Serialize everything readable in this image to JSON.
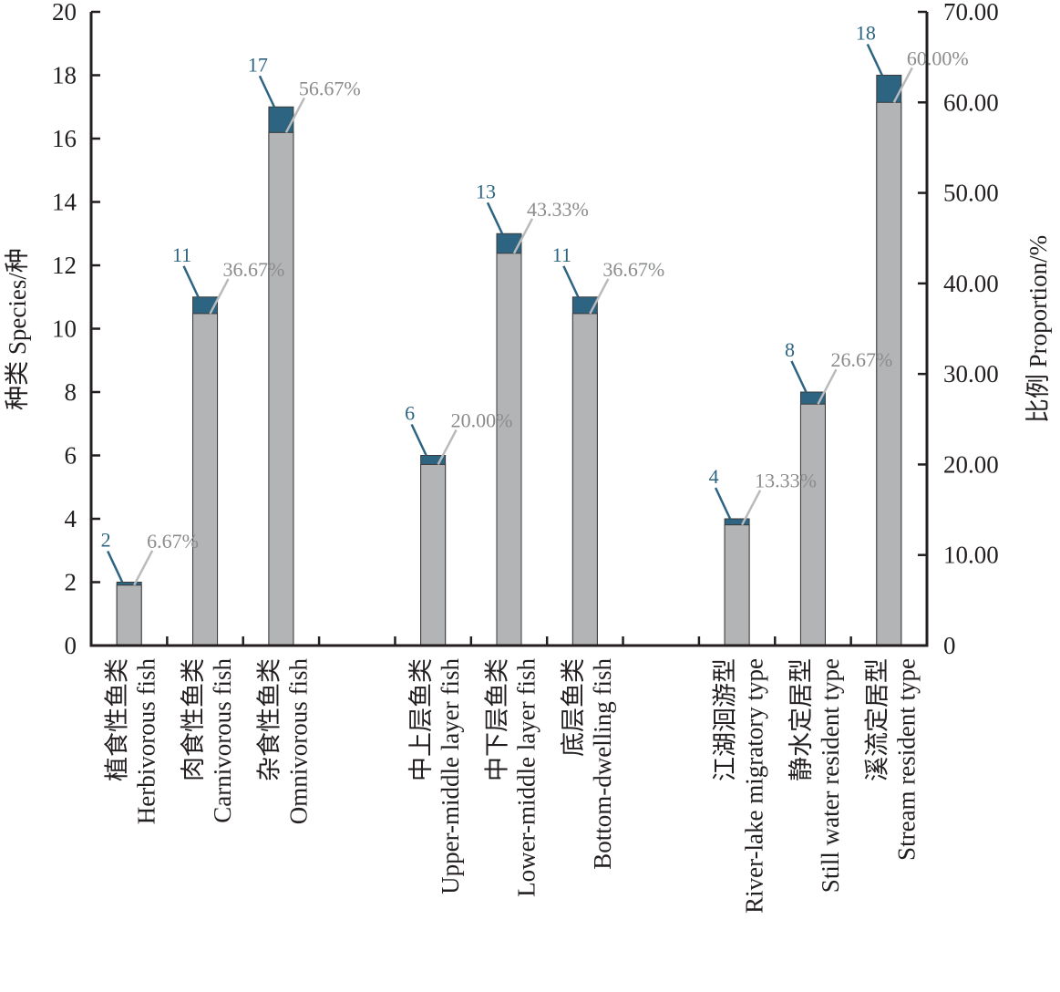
{
  "chart_data": {
    "type": "bar",
    "title": "",
    "categories": [
      {
        "zh": "植食性鱼类",
        "en": "Herbivorous fish"
      },
      {
        "zh": "肉食性鱼类",
        "en": "Carnivorous fish"
      },
      {
        "zh": "杂食性鱼类",
        "en": "Omnivorous fish"
      },
      {
        "zh": "中上层鱼类",
        "en": "Upper-middle layer fish"
      },
      {
        "zh": "中下层鱼类",
        "en": "Lower-middle layer fish"
      },
      {
        "zh": "底层鱼类",
        "en": "Bottom-dwelling fish"
      },
      {
        "zh": "江湖洄游型",
        "en": "River-lake migratory type"
      },
      {
        "zh": "静水定居型",
        "en": "Still water resident type"
      },
      {
        "zh": "溪流定居型",
        "en": "Stream resident type"
      }
    ],
    "groups": [
      {
        "slots": [
          0,
          1,
          2
        ]
      },
      {
        "slots": [
          3,
          4,
          5
        ]
      },
      {
        "slots": [
          6,
          7,
          8
        ]
      }
    ],
    "series": [
      {
        "name": "Species",
        "axis": "left",
        "values": [
          2,
          11,
          17,
          6,
          13,
          11,
          4,
          8,
          18
        ],
        "labels": [
          "2",
          "11",
          "17",
          "6",
          "13",
          "11",
          "4",
          "8",
          "18"
        ],
        "color": "#2c6481"
      },
      {
        "name": "Proportion",
        "axis": "right",
        "values": [
          6.67,
          36.67,
          56.67,
          20.0,
          43.33,
          36.67,
          13.33,
          26.67,
          60.0
        ],
        "labels": [
          "6.67%",
          "36.67%",
          "56.67%",
          "20.00%",
          "43.33%",
          "36.67%",
          "13.33%",
          "26.67%",
          "60.00%"
        ],
        "color": "#b3b4b6"
      }
    ],
    "ylabel": "种类 Species/种",
    "y2label": "比例 Proportion/%",
    "ylim": [
      0,
      20
    ],
    "y2lim": [
      0,
      70
    ],
    "yticks": [
      "0",
      "2",
      "4",
      "6",
      "8",
      "10",
      "12",
      "14",
      "16",
      "18",
      "20"
    ],
    "y2ticks": [
      "0",
      "10.00",
      "20.00",
      "30.00",
      "40.00",
      "50.00",
      "60.00",
      "70.00"
    ],
    "grid": false,
    "legend": "none",
    "label_colors": {
      "count": "#2c6481",
      "percent": "#8a8b8d",
      "count_leader": "#2c6481",
      "percent_leader": "#b9babc"
    },
    "axis_color": "#231f20"
  }
}
